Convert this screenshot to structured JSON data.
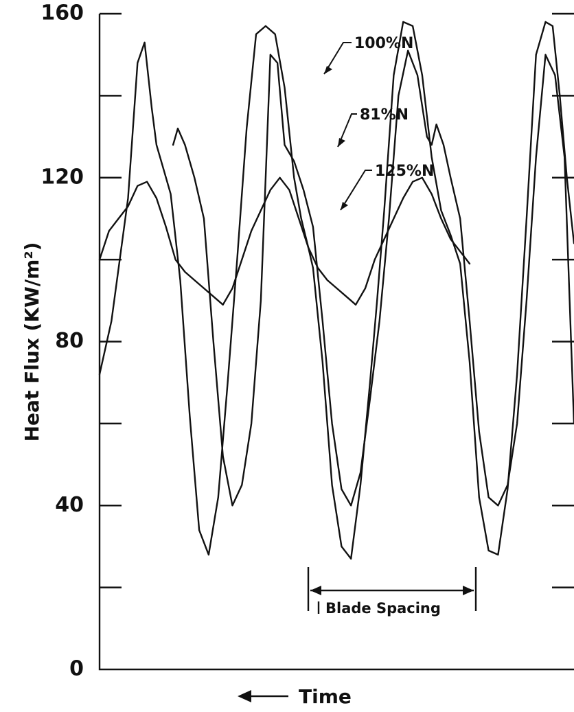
{
  "chart_data": {
    "type": "line",
    "title": "",
    "xlabel": "Time",
    "ylabel": "Heat Flux (KW/m²)",
    "ylim": [
      0,
      160
    ],
    "y_ticks": [
      0,
      40,
      80,
      120,
      160
    ],
    "y_tick_labels": [
      "0",
      "40",
      "80",
      "120",
      "160"
    ],
    "y_minor_ticks": [
      20,
      60,
      100,
      140
    ],
    "x_axis": {
      "direction_arrow": "left",
      "ticks_shown": false,
      "range": [
        0,
        1
      ]
    },
    "grid": false,
    "legend": "none",
    "series": [
      {
        "name": "100%N",
        "x": [
          0.0,
          0.025,
          0.06,
          0.08,
          0.095,
          0.11,
          0.12,
          0.135,
          0.15,
          0.17,
          0.19,
          0.21,
          0.23,
          0.25,
          0.27,
          0.29,
          0.31,
          0.33,
          0.35,
          0.37,
          0.39,
          0.41,
          0.425,
          0.44,
          0.45,
          0.47,
          0.49,
          0.51,
          0.53,
          0.55,
          0.57,
          0.585,
          0.6,
          0.62,
          0.64,
          0.66,
          0.68,
          0.7,
          0.72,
          0.74,
          0.76,
          0.78,
          0.8,
          0.82,
          0.84,
          0.86,
          0.88,
          0.9,
          0.92,
          0.94,
          0.955,
          0.97,
          0.985,
          1.0
        ],
        "y": [
          72,
          85,
          115,
          148,
          153,
          137,
          128,
          122,
          116,
          95,
          62,
          34,
          28,
          42,
          70,
          100,
          132,
          155,
          157,
          155,
          142,
          120,
          110,
          103,
          98,
          75,
          45,
          30,
          27,
          45,
          70,
          90,
          112,
          145,
          158,
          157,
          145,
          125,
          112,
          106,
          99,
          75,
          42,
          29,
          28,
          44,
          72,
          110,
          150,
          158,
          157,
          140,
          120,
          104
        ]
      },
      {
        "name": "81%N",
        "x": [
          0.155,
          0.165,
          0.18,
          0.2,
          0.22,
          0.24,
          0.26,
          0.28,
          0.3,
          0.32,
          0.34,
          0.35,
          0.36,
          0.375,
          0.39,
          0.41,
          0.43,
          0.45,
          0.47,
          0.49,
          0.51,
          0.53,
          0.55,
          0.57,
          0.59,
          0.61,
          0.63,
          0.65,
          0.67,
          0.69,
          0.7,
          0.71,
          0.725,
          0.74,
          0.76,
          0.78,
          0.8,
          0.82,
          0.84,
          0.86,
          0.88,
          0.9,
          0.92,
          0.94,
          0.96,
          0.98,
          1.0
        ],
        "y": [
          128,
          132,
          128,
          120,
          110,
          80,
          52,
          40,
          45,
          60,
          90,
          120,
          150,
          148,
          128,
          124,
          117,
          108,
          85,
          60,
          44,
          40,
          48,
          66,
          85,
          110,
          140,
          151,
          145,
          130,
          128,
          133,
          128,
          120,
          110,
          85,
          58,
          42,
          40,
          45,
          60,
          90,
          125,
          150,
          145,
          125,
          60
        ]
      },
      {
        "name": "125%N",
        "x": [
          0.0,
          0.02,
          0.04,
          0.06,
          0.08,
          0.1,
          0.12,
          0.14,
          0.16,
          0.18,
          0.2,
          0.22,
          0.24,
          0.26,
          0.28,
          0.3,
          0.32,
          0.34,
          0.36,
          0.38,
          0.4,
          0.42,
          0.44,
          0.46,
          0.48,
          0.5,
          0.52,
          0.54,
          0.56,
          0.58,
          0.6,
          0.62,
          0.64,
          0.66,
          0.68,
          0.7,
          0.72,
          0.74,
          0.76,
          0.78
        ],
        "y": [
          100,
          107,
          110,
          113,
          118,
          119,
          115,
          108,
          100,
          97,
          95,
          93,
          91,
          89,
          93,
          100,
          107,
          112,
          117,
          120,
          117,
          110,
          103,
          98,
          95,
          93,
          91,
          89,
          93,
          100,
          105,
          110,
          115,
          119,
          120,
          116,
          110,
          105,
          102,
          99
        ]
      }
    ],
    "annotations": [
      {
        "label": "100%N",
        "target_series": "100%N"
      },
      {
        "label": "81%N",
        "target_series": "81%N"
      },
      {
        "label": "125%N",
        "target_series": "125%N"
      },
      {
        "label": "Blade Spacing",
        "type": "dimension",
        "x_start": 0.44,
        "x_end": 0.79
      }
    ]
  }
}
